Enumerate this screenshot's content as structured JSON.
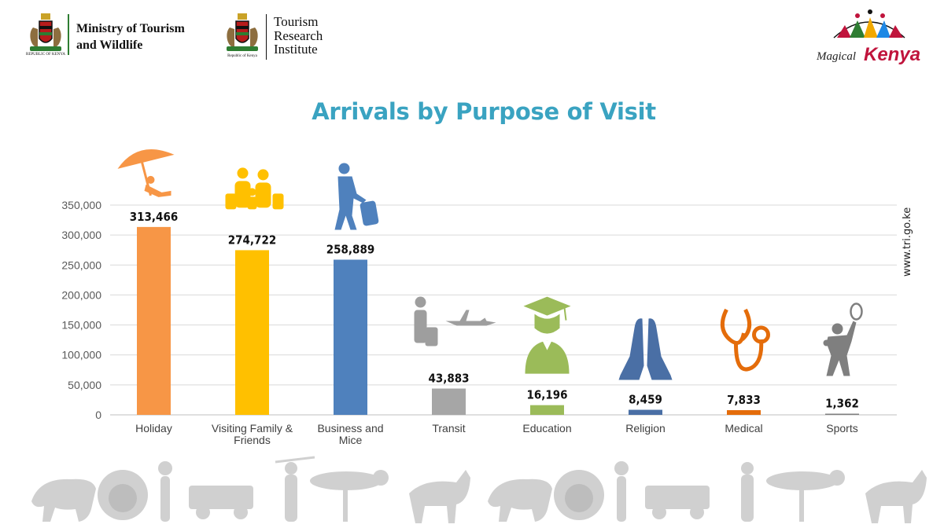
{
  "header": {
    "ministry_line1": "Ministry of Tourism",
    "ministry_line2": "and Wildlife",
    "ministry_crest_caption": "REPUBLIC OF KENYA",
    "institute_line1": "Tourism",
    "institute_line2": "Research",
    "institute_line3": "Institute",
    "institute_crest_caption": "Republic of Kenya",
    "brand_word1": "Magical",
    "brand_word2": "Kenya"
  },
  "side_url": "www.tri.go.ke",
  "colors": {
    "title": "#3aa3c1",
    "holiday": "#f79646",
    "visiting": "#ffc000",
    "business": "#4f81bd",
    "transit": "#a6a6a6",
    "education": "#9bbb59",
    "religion": "#4a6fa5",
    "medical": "#e46c0a",
    "sports": "#7f7f7f"
  },
  "chart_data": {
    "type": "bar",
    "title": "Arrivals by Purpose of Visit",
    "xlabel": "",
    "ylabel": "",
    "ylim": [
      0,
      350000
    ],
    "yticks": [
      0,
      50000,
      100000,
      150000,
      200000,
      250000,
      300000,
      350000
    ],
    "ytick_labels": [
      "0",
      "50,000",
      "100,000",
      "150,000",
      "200,000",
      "250,000",
      "300,000",
      "350,000"
    ],
    "grid": true,
    "categories": [
      {
        "lines": [
          "Holiday"
        ],
        "icon": "beach-umbrella-icon",
        "color": "#f79646"
      },
      {
        "lines": [
          "Visiting Family &",
          "Friends"
        ],
        "icon": "family-icon",
        "color": "#ffc000"
      },
      {
        "lines": [
          "Business and",
          "Mice"
        ],
        "icon": "traveler-luggage-icon",
        "color": "#4f81bd"
      },
      {
        "lines": [
          "Transit"
        ],
        "icon": "airplane-traveler-icon",
        "color": "#a6a6a6"
      },
      {
        "lines": [
          "Education"
        ],
        "icon": "graduate-icon",
        "color": "#9bbb59"
      },
      {
        "lines": [
          "Religion"
        ],
        "icon": "praying-hands-icon",
        "color": "#4a6fa5"
      },
      {
        "lines": [
          "Medical"
        ],
        "icon": "stethoscope-icon",
        "color": "#e46c0a"
      },
      {
        "lines": [
          "Sports"
        ],
        "icon": "tennis-player-icon",
        "color": "#7f7f7f"
      }
    ],
    "values": [
      313466,
      274722,
      258889,
      43883,
      16196,
      8459,
      7833,
      1362
    ],
    "value_labels": [
      "313,466",
      "274,722",
      "258,889",
      "43,883",
      "16,196",
      "8,459",
      "7,833",
      "1,362"
    ]
  }
}
